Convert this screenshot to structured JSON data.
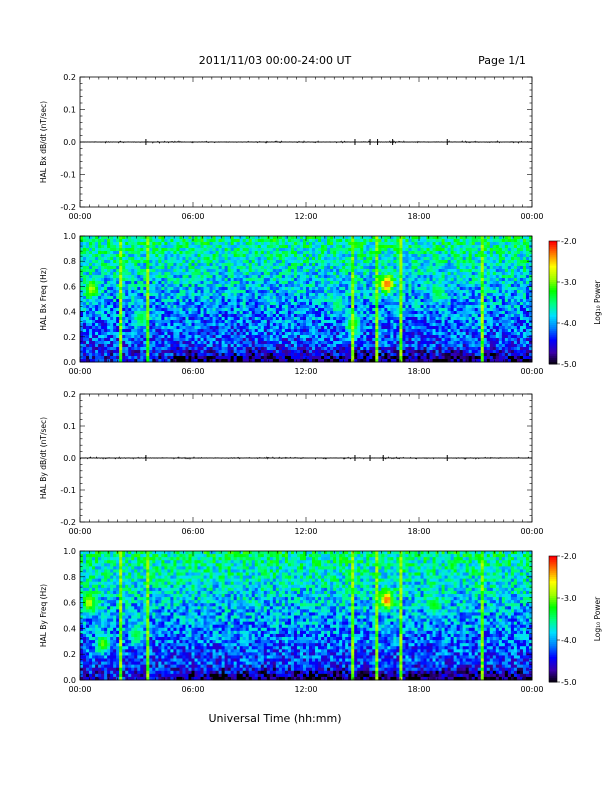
{
  "header": {
    "title": "2011/11/03  00:00-24:00 UT",
    "page": "Page 1/1"
  },
  "xlabel": "Universal Time (hh:mm)",
  "colorbar": {
    "label": "Log₁₀ Power",
    "ticks": [
      "-2.0",
      "-3.0",
      "-4.0",
      "-5.0"
    ],
    "range": [
      -5,
      -2
    ],
    "colors": [
      "#000000",
      "#3a00a8",
      "#0000ff",
      "#0080ff",
      "#00e0ff",
      "#00ff80",
      "#00ff00",
      "#a0ff00",
      "#ffff00",
      "#ff8000",
      "#ff0000"
    ]
  },
  "chart_data": [
    {
      "type": "line",
      "ylabel": "HAL Bx dB/dt (nT/sec)",
      "ylim": [
        -0.2,
        0.2
      ],
      "yticks": [
        "0.2",
        "0.1",
        "0.0",
        "-0.1",
        "-0.2"
      ],
      "xticks": [
        "00:00",
        "06:00",
        "12:00",
        "18:00",
        "00:00"
      ],
      "xlim_hours": [
        0,
        24
      ],
      "spikes_hours": [
        3.5,
        14.6,
        15.4,
        15.8,
        16.6,
        19.5
      ]
    },
    {
      "type": "heatmap",
      "ylabel": "HAL Bx Freq (Hz)",
      "ylim": [
        0,
        1.0
      ],
      "yticks": [
        "1.0",
        "0.8",
        "0.6",
        "0.4",
        "0.2",
        "0.0"
      ],
      "xticks": [
        "00:00",
        "06:00",
        "12:00",
        "18:00",
        "00:00"
      ],
      "xlim_hours": [
        0,
        24
      ],
      "vertical_streaks_hours": [
        2.2,
        3.6,
        14.5,
        15.8,
        17.0,
        21.3
      ],
      "blobs": [
        {
          "x_hours": 0.6,
          "y": 0.58,
          "power": -2.8
        },
        {
          "x_hours": 3.2,
          "y": 0.35,
          "power": -3.3
        },
        {
          "x_hours": 13.7,
          "y": 0.45,
          "power": -3.4
        },
        {
          "x_hours": 14.5,
          "y": 0.3,
          "power": -3.0
        },
        {
          "x_hours": 16.3,
          "y": 0.62,
          "power": -2.2
        },
        {
          "x_hours": 19.0,
          "y": 0.55,
          "power": -3.3
        }
      ]
    },
    {
      "type": "line",
      "ylabel": "HAL By dB/dt (nT/sec)",
      "ylim": [
        -0.2,
        0.2
      ],
      "yticks": [
        "0.2",
        "0.1",
        "0.0",
        "-0.1",
        "-0.2"
      ],
      "xticks": [
        "00:00",
        "06:00",
        "12:00",
        "18:00",
        "00:00"
      ],
      "xlim_hours": [
        0,
        24
      ],
      "spikes_hours": [
        3.5,
        14.6,
        15.4,
        16.1,
        19.5
      ]
    },
    {
      "type": "heatmap",
      "ylabel": "HAL By Freq (Hz)",
      "ylim": [
        0,
        1.0
      ],
      "yticks": [
        "1.0",
        "0.8",
        "0.6",
        "0.4",
        "0.2",
        "0.0"
      ],
      "xticks": [
        "00:00",
        "06:00",
        "12:00",
        "18:00",
        "00:00"
      ],
      "xlim_hours": [
        0,
        24
      ],
      "vertical_streaks_hours": [
        2.2,
        3.6,
        14.5,
        15.8,
        17.0,
        21.3
      ],
      "blobs": [
        {
          "x_hours": 0.5,
          "y": 0.6,
          "power": -2.8
        },
        {
          "x_hours": 1.2,
          "y": 0.28,
          "power": -3.0
        },
        {
          "x_hours": 3.0,
          "y": 0.35,
          "power": -3.3
        },
        {
          "x_hours": 16.3,
          "y": 0.62,
          "power": -2.2
        },
        {
          "x_hours": 18.8,
          "y": 0.58,
          "power": -3.2
        }
      ]
    }
  ]
}
